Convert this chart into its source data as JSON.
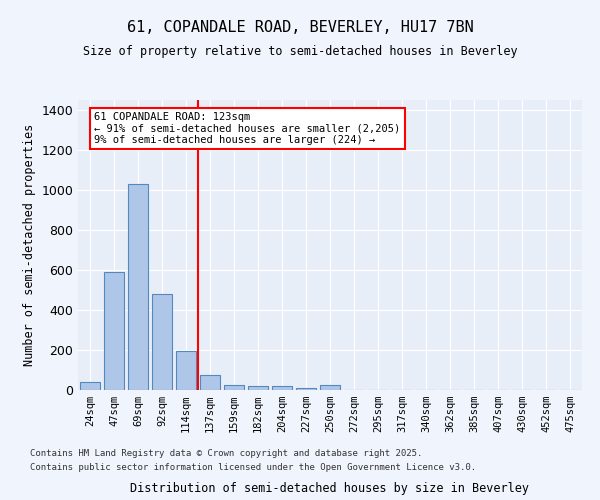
{
  "title1": "61, COPANDALE ROAD, BEVERLEY, HU17 7BN",
  "title2": "Size of property relative to semi-detached houses in Beverley",
  "xlabel": "Distribution of semi-detached houses by size in Beverley",
  "ylabel": "Number of semi-detached properties",
  "categories": [
    "24sqm",
    "47sqm",
    "69sqm",
    "92sqm",
    "114sqm",
    "137sqm",
    "159sqm",
    "182sqm",
    "204sqm",
    "227sqm",
    "250sqm",
    "272sqm",
    "295sqm",
    "317sqm",
    "340sqm",
    "362sqm",
    "385sqm",
    "407sqm",
    "430sqm",
    "452sqm",
    "475sqm"
  ],
  "values": [
    40,
    590,
    1030,
    480,
    195,
    75,
    25,
    20,
    20,
    10,
    25,
    0,
    0,
    0,
    0,
    0,
    0,
    0,
    0,
    0,
    0
  ],
  "bar_color": "#aec6e8",
  "bar_edge_color": "#5588bb",
  "red_line_x": 4.5,
  "red_line_label": "61 COPANDALE ROAD: 123sqm",
  "annotation_line1": "61 COPANDALE ROAD: 123sqm",
  "annotation_line2": "← 91% of semi-detached houses are smaller (2,205)",
  "annotation_line3": "9% of semi-detached houses are larger (224) →",
  "ylim": [
    0,
    1450
  ],
  "yticks": [
    0,
    200,
    400,
    600,
    800,
    1000,
    1200,
    1400
  ],
  "footer1": "Contains HM Land Registry data © Crown copyright and database right 2025.",
  "footer2": "Contains public sector information licensed under the Open Government Licence v3.0.",
  "background_color": "#e8eef8",
  "plot_bg_color": "#e8eef8"
}
